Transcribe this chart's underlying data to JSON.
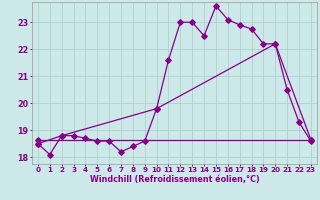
{
  "background_color": "#cce8e8",
  "grid_color": "#aacccc",
  "line_color": "#880088",
  "xlabel": "Windchill (Refroidissement éolien,°C)",
  "xlim": [
    -0.5,
    23.5
  ],
  "ylim": [
    17.75,
    23.75
  ],
  "yticks": [
    18,
    19,
    20,
    21,
    22,
    23
  ],
  "xticks": [
    0,
    1,
    2,
    3,
    4,
    5,
    6,
    7,
    8,
    9,
    10,
    11,
    12,
    13,
    14,
    15,
    16,
    17,
    18,
    19,
    20,
    21,
    22,
    23
  ],
  "line1_x": [
    0,
    1,
    2,
    3,
    4,
    5,
    6,
    7,
    8,
    9,
    10,
    11,
    12,
    13,
    14,
    15,
    16,
    17,
    18,
    19,
    20,
    21,
    22,
    23
  ],
  "line1_y": [
    18.5,
    18.1,
    18.8,
    18.8,
    18.7,
    18.6,
    18.6,
    18.2,
    18.4,
    18.6,
    19.8,
    21.6,
    23.0,
    23.0,
    22.5,
    23.6,
    23.1,
    22.9,
    22.75,
    22.2,
    22.2,
    20.5,
    19.3,
    18.6
  ],
  "line2_x": [
    0,
    2,
    10,
    20,
    23
  ],
  "line2_y": [
    18.5,
    18.8,
    19.8,
    22.2,
    18.65
  ],
  "line3_x": [
    0,
    23
  ],
  "line3_y": [
    18.65,
    18.65
  ]
}
